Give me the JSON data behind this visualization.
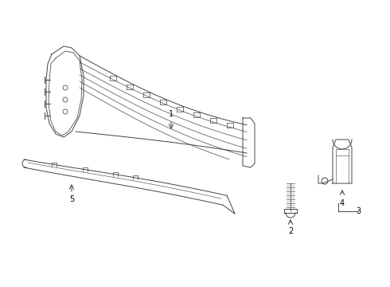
{
  "background_color": "#ffffff",
  "line_color": "#444444",
  "figsize": [
    4.9,
    3.6
  ],
  "dpi": 100,
  "lw": 0.7
}
